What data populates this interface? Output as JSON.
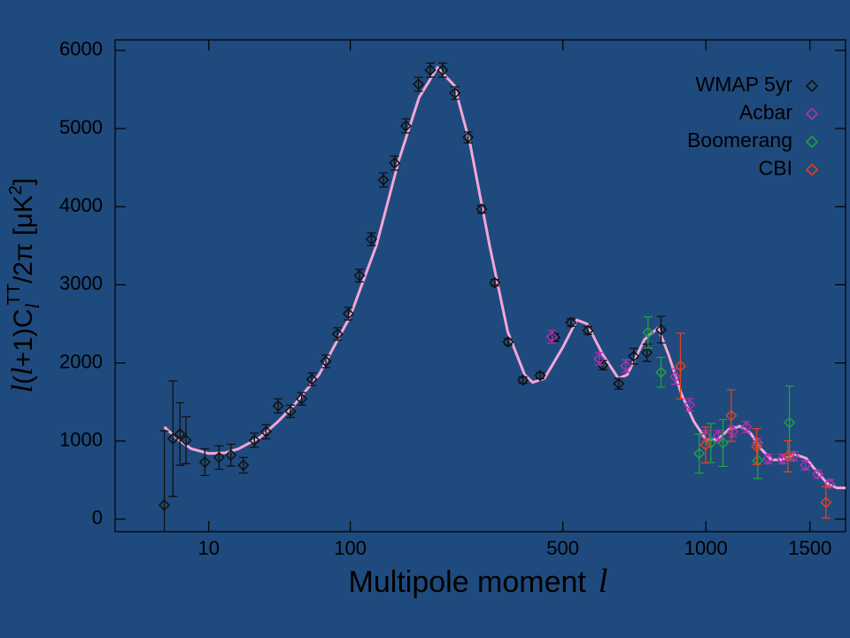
{
  "chart_data": {
    "type": "scatter",
    "ylabel": [
      "l",
      "(",
      "l",
      "+1)C",
      "l",
      "TT",
      "/2π [μK",
      "2",
      "]"
    ],
    "xlabel": [
      "Multipole moment",
      "l"
    ],
    "xscale": "power",
    "xpower": 0.4,
    "xlim": [
      0,
      1700
    ],
    "xticks": [
      10,
      100,
      500,
      1000,
      1500
    ],
    "ylim": [
      -160,
      6135
    ],
    "yticks": [
      0,
      1000,
      2000,
      3000,
      4000,
      5000,
      6000
    ],
    "legend": "upper right",
    "series": [
      {
        "name": "WMAP 5yr",
        "color": "#111111",
        "x": [
          2,
          3,
          4,
          5,
          9,
          13,
          17,
          22,
          27,
          33,
          40,
          48,
          56,
          64,
          76,
          87,
          98,
          110,
          124,
          139,
          154,
          170,
          189,
          208,
          229,
          251,
          276,
          303,
          331,
          361,
          396,
          439,
          478,
          523,
          573,
          619,
          671,
          722,
          769,
          821
        ],
        "values": [
          180,
          1030,
          1090,
          1010,
          730,
          790,
          820,
          690,
          1010,
          1120,
          1450,
          1380,
          1540,
          1790,
          2020,
          2370,
          2630,
          3118,
          3583,
          4342,
          4558,
          5034,
          5567,
          5748,
          5748,
          5454,
          4887,
          3968,
          3027,
          2268,
          1780,
          1837,
          2324,
          2517,
          2415,
          1973,
          1735,
          2086,
          2131,
          2426
        ],
        "errors": [
          950,
          740,
          400,
          300,
          170,
          150,
          140,
          100,
          90,
          90,
          90,
          80,
          80,
          80,
          80,
          80,
          80,
          80,
          80,
          90,
          90,
          90,
          90,
          90,
          90,
          80,
          70,
          50,
          40,
          40,
          40,
          40,
          50,
          50,
          50,
          60,
          70,
          100,
          110,
          170
        ]
      },
      {
        "name": "Acbar",
        "color": "#b030b0",
        "x": [
          470,
          608,
          695,
          876,
          932,
          999,
          1054,
          1118,
          1180,
          1234,
          1285,
          1356,
          1414,
          1476,
          1543,
          1608
        ],
        "values": [
          2335,
          2052,
          1961,
          1825,
          1463,
          1066,
          1066,
          1122,
          1179,
          975,
          771,
          771,
          805,
          692,
          578,
          454
        ],
        "errors": [
          80,
          80,
          80,
          100,
          80,
          70,
          70,
          70,
          70,
          60,
          60,
          60,
          60,
          60,
          50,
          50
        ]
      },
      {
        "name": "Boomerang",
        "color": "#20a040",
        "x": [
          773,
          821,
          972,
          1021,
          1074,
          1234,
          1392
        ],
        "values": [
          2390,
          1880,
          840,
          975,
          975,
          750,
          1235
        ],
        "errors": [
          200,
          190,
          250,
          250,
          300,
          230,
          470
        ]
      },
      {
        "name": "CBI",
        "color": "#e04020",
        "x": [
          896,
          999,
          1111,
          1229,
          1384,
          1588
        ],
        "values": [
          1960,
          950,
          1326,
          930,
          805,
          215
        ],
        "errors": [
          420,
          230,
          330,
          230,
          200,
          200
        ]
      }
    ],
    "model": {
      "color": "#f4a6d6",
      "x": [
        2,
        4,
        6,
        10,
        15,
        20,
        30,
        40,
        50,
        70,
        100,
        130,
        160,
        190,
        220,
        250,
        280,
        320,
        360,
        400,
        420,
        450,
        500,
        540,
        570,
        620,
        670,
        700,
        760,
        810,
        850,
        900,
        950,
        1000,
        1050,
        1100,
        1150,
        1200,
        1250,
        1300,
        1350,
        1420,
        1480,
        1540,
        1600,
        1650,
        1700
      ],
      "values": [
        1180,
        1000,
        900,
        840,
        850,
        900,
        1050,
        1250,
        1450,
        1850,
        2600,
        3500,
        4600,
        5400,
        5780,
        5550,
        4800,
        3500,
        2400,
        1850,
        1750,
        1800,
        2200,
        2550,
        2500,
        2100,
        1800,
        1850,
        2300,
        2450,
        2100,
        1600,
        1250,
        1020,
        1020,
        1150,
        1190,
        1100,
        900,
        760,
        760,
        830,
        780,
        600,
        450,
        400,
        400
      ]
    }
  }
}
